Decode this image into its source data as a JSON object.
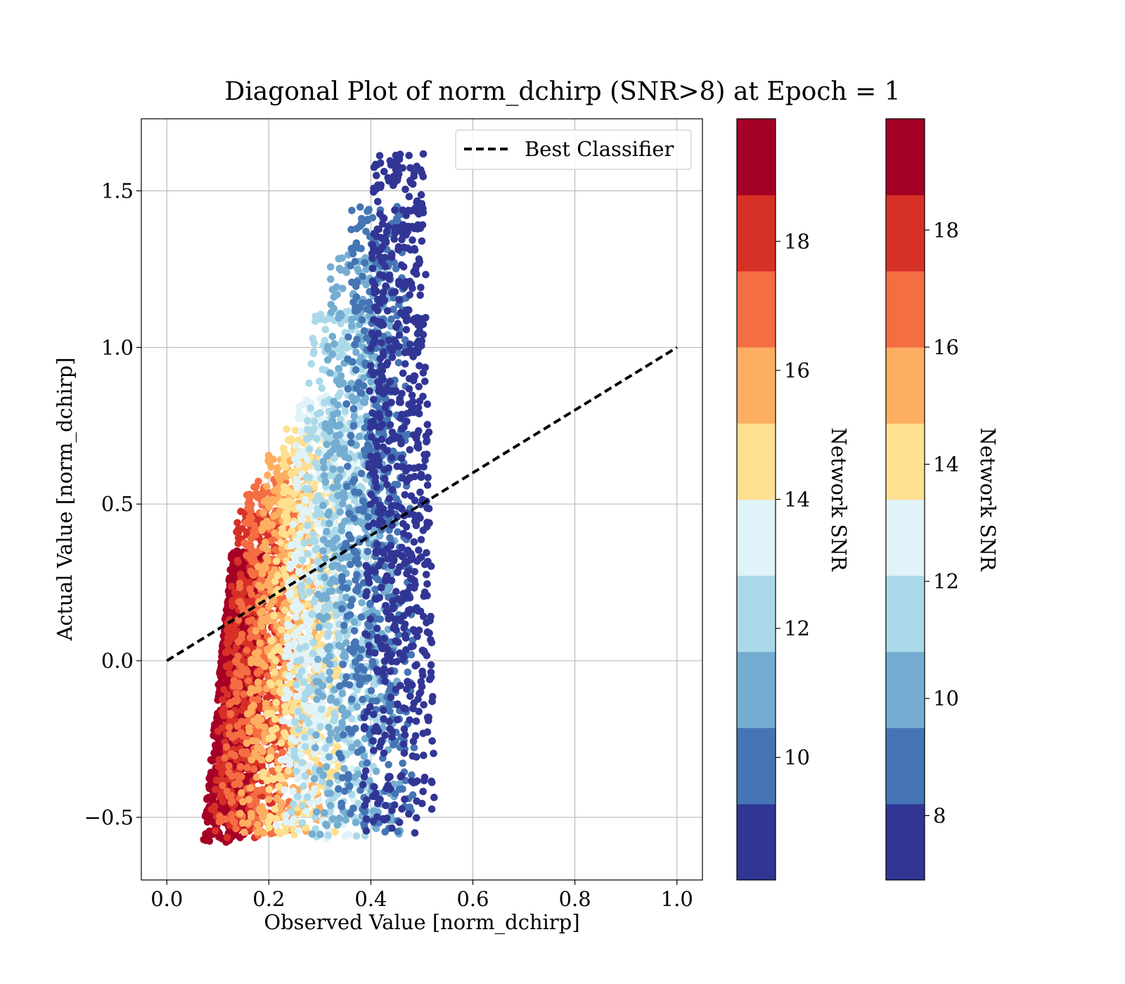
{
  "chart_data": {
    "type": "scatter",
    "title": "Diagonal Plot of norm_dchirp (SNR>8) at Epoch = 1",
    "xlabel": "Observed Value [norm_dchirp]",
    "ylabel": "Actual Value [norm_dchirp]",
    "xlim": [
      -0.05,
      1.05
    ],
    "ylim": [
      -0.7,
      1.73
    ],
    "xticks": [
      0.0,
      0.2,
      0.4,
      0.6,
      0.8,
      1.0
    ],
    "xtick_labels": [
      "0.0",
      "0.2",
      "0.4",
      "0.6",
      "0.8",
      "1.0"
    ],
    "yticks": [
      -0.5,
      0.0,
      0.5,
      1.0,
      1.5
    ],
    "ytick_labels": [
      "−0.5",
      "0.0",
      "0.5",
      "1.0",
      "1.5"
    ],
    "grid": true,
    "legend": {
      "position": "top-right",
      "entries": [
        "Best Classifier"
      ]
    },
    "reference_line": {
      "name": "Best Classifier",
      "style": "dashed",
      "color": "#000000",
      "x": [
        0,
        1
      ],
      "y": [
        0,
        1
      ]
    },
    "colormap": "RdYlBu_r",
    "color_levels": [
      "#313695",
      "#4575b4",
      "#74add1",
      "#abd9e9",
      "#e0f3f8",
      "#fee090",
      "#fdae61",
      "#f46d43",
      "#d73027",
      "#a50026"
    ],
    "point_clusters": [
      {
        "snr_bin": "≥18",
        "color_index": 9,
        "x_range": [
          0.07,
          0.17
        ],
        "y_range": [
          -0.58,
          0.35
        ],
        "approx_points": 1400
      },
      {
        "snr_bin": "17–18",
        "color_index": 8,
        "x_range": [
          0.08,
          0.22
        ],
        "y_range": [
          -0.57,
          0.48
        ],
        "approx_points": 500
      },
      {
        "snr_bin": "16–17",
        "color_index": 7,
        "x_range": [
          0.1,
          0.26
        ],
        "y_range": [
          -0.56,
          0.58
        ],
        "approx_points": 450
      },
      {
        "snr_bin": "15–16",
        "color_index": 6,
        "x_range": [
          0.14,
          0.3
        ],
        "y_range": [
          -0.56,
          0.66
        ],
        "approx_points": 450
      },
      {
        "snr_bin": "14–15",
        "color_index": 5,
        "x_range": [
          0.18,
          0.34
        ],
        "y_range": [
          -0.57,
          0.75
        ],
        "approx_points": 450
      },
      {
        "snr_bin": "13–14",
        "color_index": 4,
        "x_range": [
          0.21,
          0.38
        ],
        "y_range": [
          -0.57,
          0.85
        ],
        "approx_points": 450
      },
      {
        "snr_bin": "12–13",
        "color_index": 3,
        "x_range": [
          0.24,
          0.42
        ],
        "y_range": [
          -0.57,
          1.12
        ],
        "approx_points": 500
      },
      {
        "snr_bin": "10–12",
        "color_index": 2,
        "x_range": [
          0.28,
          0.46
        ],
        "y_range": [
          -0.56,
          1.3
        ],
        "approx_points": 500
      },
      {
        "snr_bin": "9–10",
        "color_index": 1,
        "x_range": [
          0.33,
          0.49
        ],
        "y_range": [
          -0.55,
          1.45
        ],
        "approx_points": 500
      },
      {
        "snr_bin": "<9",
        "color_index": 0,
        "x_range": [
          0.38,
          0.53
        ],
        "y_range": [
          -0.55,
          1.62
        ],
        "approx_points": 700
      }
    ],
    "colorbars": [
      {
        "label": "Network SNR",
        "range": [
          8.1,
          19.9
        ],
        "ticks": [
          10,
          12,
          14,
          16,
          18
        ],
        "tick_labels": [
          "10",
          "12",
          "14",
          "16",
          "18"
        ]
      },
      {
        "label": "Network SNR",
        "range": [
          6.9,
          19.9
        ],
        "ticks": [
          8,
          10,
          12,
          14,
          16,
          18
        ],
        "tick_labels": [
          "8",
          "10",
          "12",
          "14",
          "16",
          "18"
        ]
      }
    ]
  }
}
